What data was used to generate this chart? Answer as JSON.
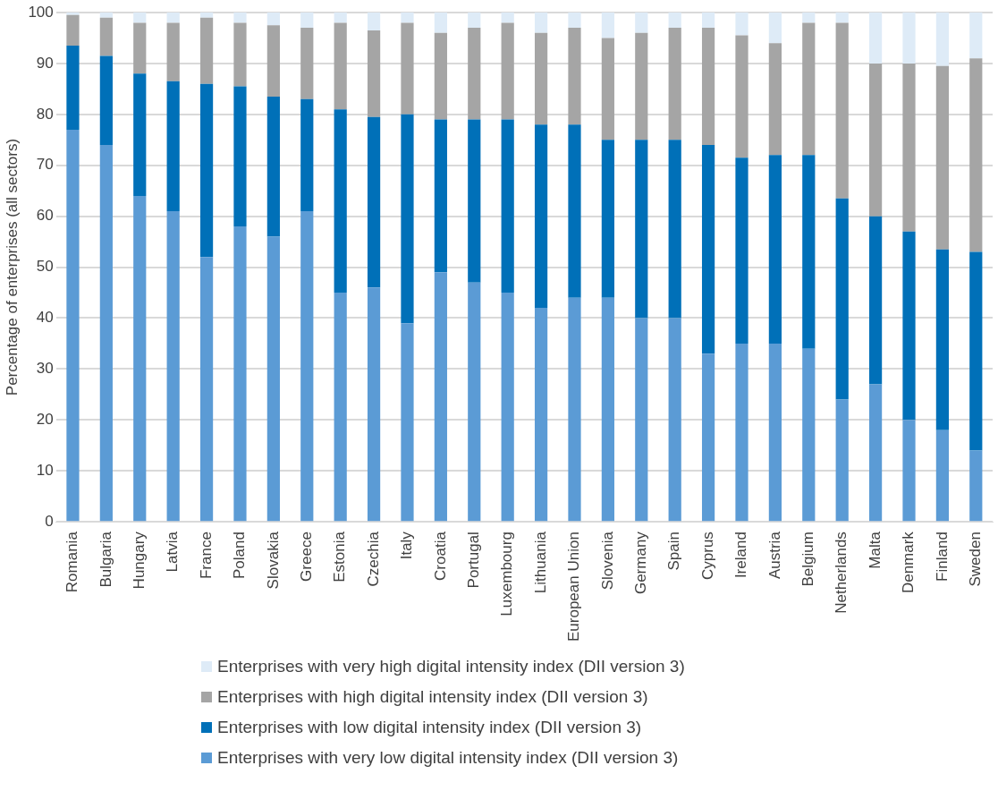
{
  "chart_data": {
    "type": "bar",
    "stacked": true,
    "ylabel": "Percentage of enterprises (all sectors)",
    "categories": [
      "Romania",
      "Bulgaria",
      "Hungary",
      "Latvia",
      "France",
      "Poland",
      "Slovakia",
      "Greece",
      "Estonia",
      "Czechia",
      "Italy",
      "Croatia",
      "Portugal",
      "Luxembourg",
      "Lithuania",
      "European Union",
      "Slovenia",
      "Germany",
      "Spain",
      "Cyprus",
      "Ireland",
      "Austria",
      "Belgium",
      "Netherlands",
      "Malta",
      "Denmark",
      "Finland",
      "Sweden"
    ],
    "series": [
      {
        "name": "Enterprises with very low digital intensity index (DII version 3)",
        "color": "#5b9bd5",
        "values": [
          77,
          74,
          64,
          61,
          52,
          58,
          56,
          61,
          45,
          46,
          39,
          49,
          47,
          45,
          42,
          44,
          44,
          40,
          40,
          33,
          35,
          35,
          34,
          24,
          27,
          20,
          18,
          14
        ]
      },
      {
        "name": "Enterprises with low digital intensity index (DII version 3)",
        "color": "#0070b8",
        "values": [
          16.5,
          17.5,
          24,
          25.5,
          34,
          27.5,
          27.5,
          22,
          36,
          33.5,
          41,
          30,
          32,
          34,
          36,
          34,
          31,
          35,
          35,
          41,
          36.5,
          37,
          38,
          39.5,
          33,
          37,
          35.5,
          39
        ]
      },
      {
        "name": "Enterprises with high digital intensity index (DII version 3)",
        "color": "#a5a5a5",
        "values": [
          6,
          7.5,
          10,
          11.5,
          13,
          12.5,
          14,
          14,
          17,
          17,
          18,
          17,
          18,
          19,
          18,
          19,
          20,
          21,
          22,
          23,
          24,
          22,
          26,
          34.5,
          30,
          33,
          36,
          38
        ]
      },
      {
        "name": "Enterprises with very high digital intensity index (DII version 3)",
        "color": "#deebf7",
        "values": [
          0.5,
          1,
          2,
          2,
          1,
          2,
          2.5,
          3,
          2,
          3.5,
          2,
          4,
          3,
          2,
          4,
          3,
          5,
          4,
          3,
          3,
          4.5,
          6,
          2,
          2,
          10,
          10,
          10.5,
          9
        ]
      }
    ],
    "ylim": [
      0,
      100
    ],
    "yticks": [
      0,
      10,
      20,
      30,
      40,
      50,
      60,
      70,
      80,
      90,
      100
    ],
    "grid": "y",
    "legend": "bottom"
  }
}
